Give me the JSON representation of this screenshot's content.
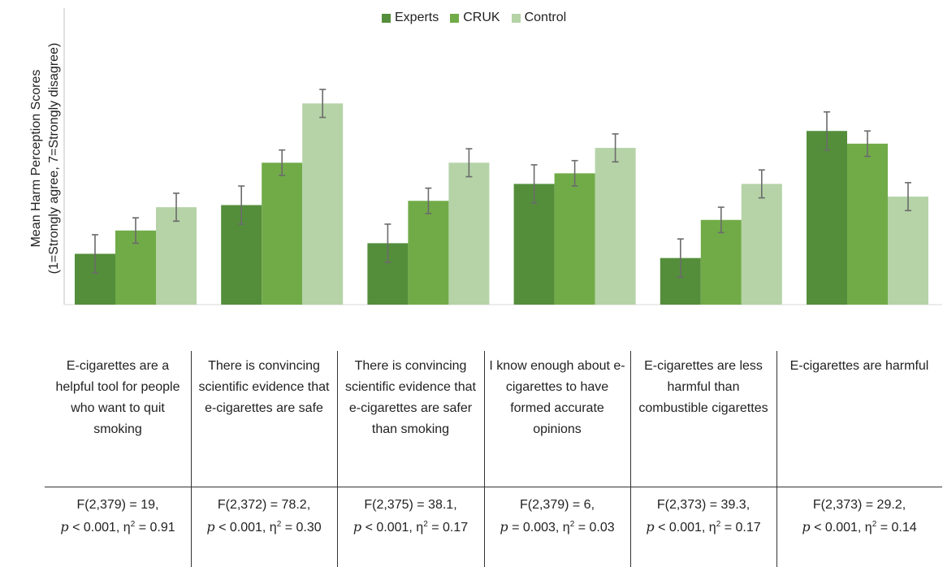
{
  "chart_data": {
    "type": "bar",
    "ylabel_line1": "Mean Harm Perception Scores",
    "ylabel_line2": "(1=Strongly agree, 7=Strongly disagree)",
    "ylim": [
      0,
      7
    ],
    "grid": false,
    "legend_position": "top-center",
    "categories": [
      "E-cigarettes are a helpful tool for people who want to quit smoking",
      "There is convincing scientific evidence that e-cigarettes are safe",
      "There is convincing scientific evidence that e-cigarettes are safer than smoking",
      "I know enough about e-cigarettes to have formed accurate opinions",
      "E-cigarettes are less harmful than combustible cigarettes",
      "E-cigarettes are harmful"
    ],
    "series": [
      {
        "name": "Experts",
        "color": "#548e3b",
        "values": [
          1.2,
          2.35,
          1.45,
          2.85,
          1.1,
          4.1
        ],
        "errors": [
          0.45,
          0.45,
          0.45,
          0.45,
          0.45,
          0.45
        ]
      },
      {
        "name": "CRUK",
        "color": "#71ab48",
        "values": [
          1.75,
          3.35,
          2.45,
          3.1,
          2.0,
          3.8
        ],
        "errors": [
          0.3,
          0.3,
          0.3,
          0.3,
          0.3,
          0.3
        ]
      },
      {
        "name": "Control",
        "color": "#b5d3a7",
        "values": [
          2.3,
          4.75,
          3.35,
          3.7,
          2.85,
          2.55
        ],
        "errors": [
          0.33,
          0.33,
          0.33,
          0.33,
          0.33,
          0.33
        ]
      }
    ]
  },
  "table": {
    "columns": [
      {
        "statement": "E-cigarettes are a helpful tool for people who want to quit smoking",
        "f": "F(2,379) = 19,",
        "p": "< 0.001, η",
        "eta": "= 0.91"
      },
      {
        "statement": "There is convincing scientific evidence that e-cigarettes are safe",
        "f": "F(2,372) = 78.2,",
        "p": "< 0.001, η",
        "eta": "= 0.30"
      },
      {
        "statement": "There is convincing scientific evidence that e-cigarettes are safer than smoking",
        "f": "F(2,375) = 38.1,",
        "p": "< 0.001, η",
        "eta": "= 0.17"
      },
      {
        "statement": "I know enough about e-cigarettes to have formed accurate opinions",
        "f": "F(2,379) = 6,",
        "p": "= 0.003, η",
        "eta": "= 0.03"
      },
      {
        "statement": "E-cigarettes are less harmful than combustible cigarettes",
        "f": "F(2,373) = 39.3,",
        "p": "< 0.001, η",
        "eta": "= 0.17"
      },
      {
        "statement": "E-cigarettes are harmful",
        "f": "F(2,373) = 29.2,",
        "p": "< 0.001, η",
        "eta": "= 0.14"
      }
    ],
    "p_symbol": "p",
    "sup": "2"
  }
}
